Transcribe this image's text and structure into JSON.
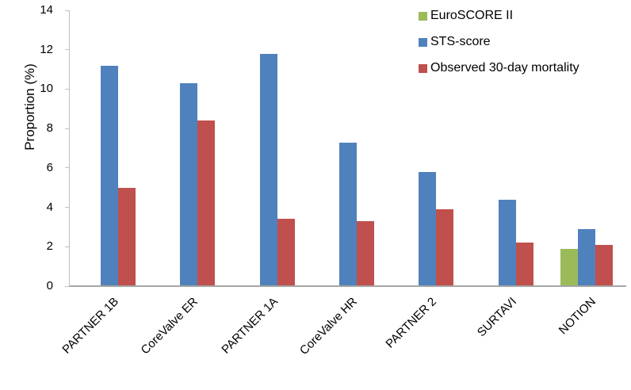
{
  "chart_data": {
    "type": "bar",
    "title": "",
    "ylabel": "Proportion (%)",
    "xlabel": "",
    "ylim": [
      0,
      14
    ],
    "ytick_step": 2,
    "grid": false,
    "legend_position": "top-right",
    "categories": [
      "PARTNER 1B",
      "CoreValve ER",
      "PARTNER 1A",
      "CoreValve HR",
      "PARTNER 2",
      "SURTAVI",
      "NOTION"
    ],
    "series": [
      {
        "name": "EuroSCORE II",
        "color": "#9bbb59",
        "values": [
          null,
          null,
          null,
          null,
          null,
          null,
          1.9
        ]
      },
      {
        "name": "STS-score",
        "color": "#4f81bd",
        "values": [
          11.2,
          10.3,
          11.8,
          7.3,
          5.8,
          4.4,
          2.9
        ]
      },
      {
        "name": "Observed 30-day mortality",
        "color": "#c0504d",
        "values": [
          5.0,
          8.4,
          3.4,
          3.3,
          3.9,
          2.2,
          2.1
        ]
      }
    ],
    "axis_colors": {
      "y_axis_line": "#bfbfbf",
      "x_axis_line": "#a6a6a6"
    }
  }
}
